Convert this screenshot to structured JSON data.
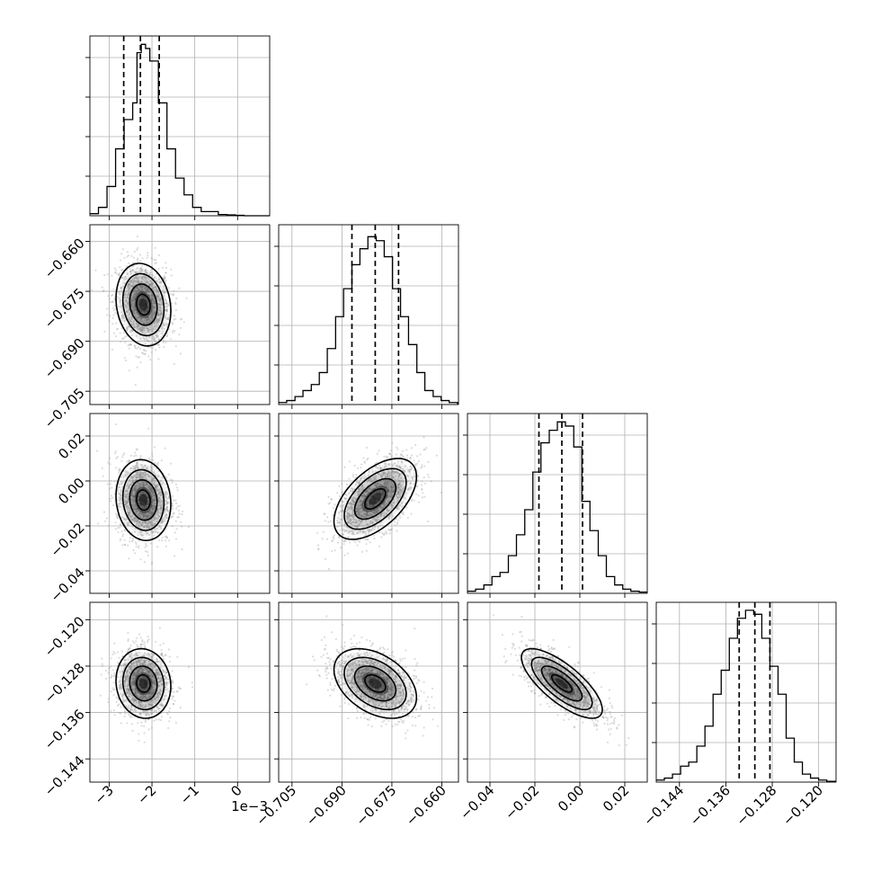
{
  "chart_data": {
    "type": "corner",
    "n_params": 4,
    "offset_label": "1e−3",
    "params": [
      {
        "scale": 0.001,
        "range": [
          -3.45,
          0.75
        ],
        "ticks": [
          -3,
          -2,
          -1,
          0
        ],
        "tick_labels": [
          "−3",
          "−2",
          "−1",
          "0"
        ],
        "median": -2.27,
        "q16": -2.66,
        "q84": -1.83,
        "hist_bins": [
          -3.45,
          -3.25,
          -3.05,
          -2.85,
          -2.65,
          -2.45,
          -2.35,
          -2.25,
          -2.15,
          -2.05,
          -1.85,
          -1.65,
          -1.45,
          -1.25,
          -1.05,
          -0.85,
          -0.65,
          -0.45,
          -0.25,
          -0.05,
          0.15,
          0.35,
          0.55,
          0.75
        ],
        "hist_vals": [
          0.5,
          2,
          7,
          16,
          23,
          27,
          39,
          41,
          40,
          37,
          27,
          16,
          9,
          5,
          2,
          1,
          1,
          0.3,
          0.2,
          0.1,
          0,
          0,
          0
        ],
        "hist_max": 43
      },
      {
        "range": [
          -0.709,
          -0.655
        ],
        "ticks": [
          -0.705,
          -0.69,
          -0.675,
          -0.66
        ],
        "tick_labels": [
          "−0.705",
          "−0.690",
          "−0.675",
          "−0.660"
        ],
        "median": -0.68,
        "q16": -0.687,
        "q84": -0.673,
        "hist_bins": [
          -0.709,
          -0.7066,
          -0.7041,
          -0.7017,
          -0.6992,
          -0.6968,
          -0.6944,
          -0.6919,
          -0.6895,
          -0.687,
          -0.6846,
          -0.6822,
          -0.6797,
          -0.6773,
          -0.6748,
          -0.6724,
          -0.67,
          -0.6675,
          -0.6651,
          -0.6626,
          -0.6602,
          -0.6578,
          -0.6553,
          -0.655
        ],
        "hist_vals": [
          0.5,
          1,
          2,
          3.5,
          5,
          8,
          14,
          22,
          29,
          35,
          39,
          42,
          41,
          37,
          29,
          22,
          15,
          8,
          3.5,
          2,
          1,
          0.5,
          0.3
        ],
        "hist_max": 45
      },
      {
        "range": [
          -0.05,
          0.03
        ],
        "ticks": [
          -0.04,
          -0.02,
          0.0,
          0.02
        ],
        "tick_labels": [
          "−0.04",
          "−0.02",
          "0.00",
          "0.02"
        ],
        "median": -0.008,
        "q16": -0.0182,
        "q84": 0.0012,
        "hist_bins": [
          -0.05,
          -0.0464,
          -0.0427,
          -0.0391,
          -0.0355,
          -0.0318,
          -0.0282,
          -0.0245,
          -0.0209,
          -0.0173,
          -0.0136,
          -0.01,
          -0.0064,
          -0.0027,
          0.0009,
          0.0045,
          0.0082,
          0.0118,
          0.0155,
          0.0191,
          0.0227,
          0.0264,
          0.03
        ],
        "hist_vals": [
          0.5,
          1,
          2,
          4,
          5,
          9,
          14,
          20,
          29,
          36,
          39,
          41,
          40,
          35,
          22,
          15,
          9,
          4,
          2,
          1,
          0.5,
          0.3
        ],
        "hist_max": 43
      },
      {
        "range": [
          -0.148,
          -0.117
        ],
        "ticks": [
          -0.144,
          -0.136,
          -0.128,
          -0.12
        ],
        "tick_labels": [
          "−0.144",
          "−0.136",
          "−0.128",
          "−0.120"
        ],
        "median": -0.131,
        "q16": -0.1337,
        "q84": -0.1284,
        "hist_bins": [
          -0.148,
          -0.1466,
          -0.1452,
          -0.1438,
          -0.1424,
          -0.141,
          -0.1396,
          -0.1382,
          -0.1368,
          -0.1354,
          -0.134,
          -0.1326,
          -0.1312,
          -0.1298,
          -0.1284,
          -0.127,
          -0.1256,
          -0.1242,
          -0.1228,
          -0.1214,
          -0.12,
          -0.1186,
          -0.117
        ],
        "hist_vals": [
          0.5,
          1,
          2,
          4,
          5,
          9,
          14,
          22,
          28,
          36,
          41,
          43,
          42,
          36,
          29,
          22,
          11,
          5,
          2,
          1,
          0.5,
          0.2
        ],
        "hist_max": 45
      }
    ],
    "pairs": [
      {
        "row": 1,
        "col": 0,
        "mean": [
          -2.2,
          -0.679
        ],
        "sd": [
          0.32,
          0.0062
        ],
        "rho": -0.15
      },
      {
        "row": 2,
        "col": 0,
        "mean": [
          -2.2,
          -0.0085
        ],
        "sd": [
          0.32,
          0.009
        ],
        "rho": -0.1
      },
      {
        "row": 2,
        "col": 1,
        "mean": [
          -0.68,
          -0.008
        ],
        "sd": [
          0.0062,
          0.009
        ],
        "rho": 0.55
      },
      {
        "row": 3,
        "col": 0,
        "mean": [
          -2.2,
          -0.131
        ],
        "sd": [
          0.32,
          0.003
        ],
        "rho": -0.08
      },
      {
        "row": 3,
        "col": 1,
        "mean": [
          -0.68,
          -0.131
        ],
        "sd": [
          0.0062,
          0.003
        ],
        "rho": -0.4
      },
      {
        "row": 3,
        "col": 2,
        "mean": [
          -0.008,
          -0.131
        ],
        "sd": [
          0.009,
          0.003
        ],
        "rho": -0.75
      }
    ],
    "contour_levels_sigma": [
      0.5,
      1.0,
      1.5,
      2.0
    ],
    "grid": true,
    "colors": {
      "lines": "#000000",
      "points": "#9a9a9a"
    }
  }
}
